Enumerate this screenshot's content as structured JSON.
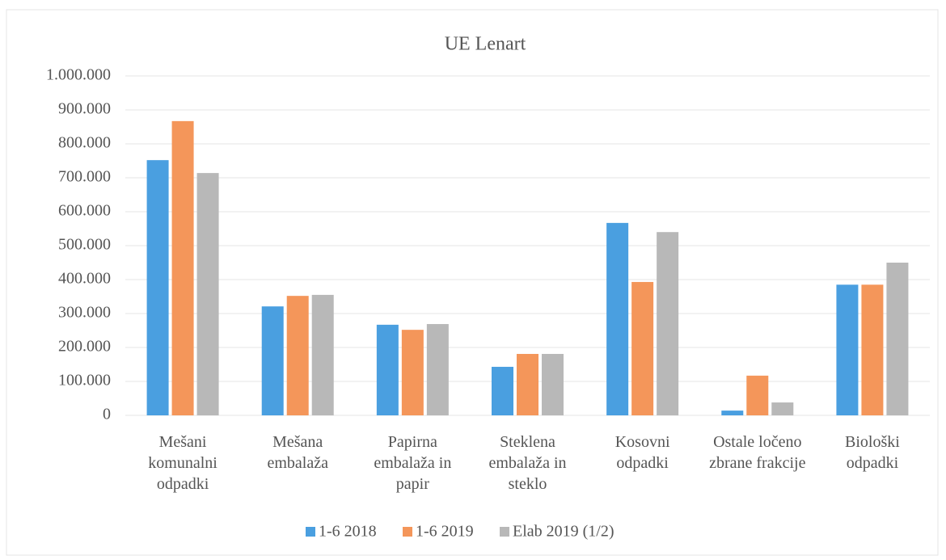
{
  "chart_data": {
    "type": "bar",
    "title": "UE Lenart",
    "categories": [
      "Mešani komunalni odpadki",
      "Mešana embalaža",
      "Papirna embalaža in papir",
      "Steklena embalaža in steklo",
      "Kosovni odpadki",
      "Ostale ločeno zbrane frakcije",
      "Biološki odpadki"
    ],
    "series": [
      {
        "name": "1-6 2018",
        "color": "#4a9fe0",
        "values": [
          752000,
          321000,
          267000,
          143000,
          567000,
          14000,
          385000
        ]
      },
      {
        "name": "1-6 2019",
        "color": "#f4965a",
        "values": [
          867000,
          352000,
          252000,
          181000,
          393000,
          117000,
          385000
        ]
      },
      {
        "name": "Elab 2019 (1/2)",
        "color": "#b8b8b8",
        "values": [
          714000,
          355000,
          269000,
          181000,
          540000,
          38000,
          450000
        ]
      }
    ],
    "ylim": [
      0,
      1000000
    ],
    "yticks": [
      0,
      {
        "value": 100000,
        "label": "100.000"
      },
      {
        "value": 200000,
        "label": "200.000"
      },
      {
        "value": 300000,
        "label": "300.000"
      },
      {
        "value": 400000,
        "label": "400.000"
      },
      {
        "value": 500000,
        "label": "500.000"
      },
      {
        "value": 600000,
        "label": "600.000"
      },
      {
        "value": 700000,
        "label": "700.000"
      },
      {
        "value": 800000,
        "label": "800.000"
      },
      {
        "value": 900000,
        "label": "900.000"
      },
      {
        "value": 1000000,
        "label": "1.000.000"
      }
    ],
    "grid": true,
    "legend": "bottom"
  }
}
